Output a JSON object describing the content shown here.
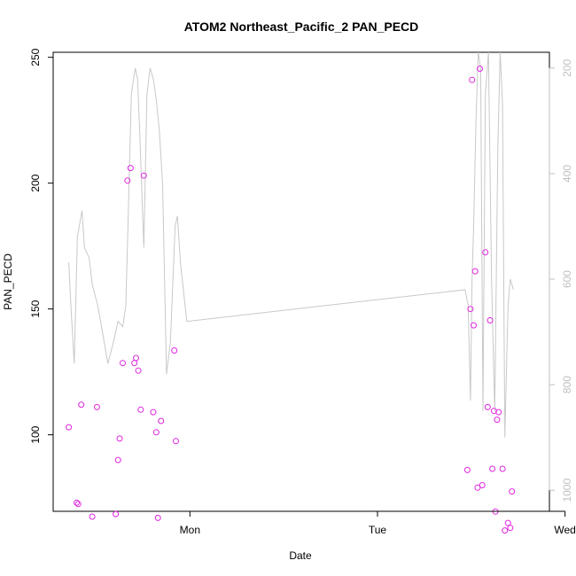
{
  "chart_data": {
    "type": "scatter",
    "title": "ATOM2 Northeast_Pacific_2 PAN_PECD",
    "xlabel": "Date",
    "ylabel": "PAN_PECD",
    "x_ticks": [
      "Mon",
      "Tue",
      "Wed"
    ],
    "y_ticks": [
      100,
      150,
      200,
      250
    ],
    "y_range": [
      69.6,
      252
    ],
    "secondary_axis": {
      "ticks": [
        200,
        400,
        600,
        800,
        1000
      ],
      "range": [
        170,
        1040
      ],
      "reversed": true,
      "color": "#bfbfbf"
    },
    "x_range_hours": [
      -17.5,
      46.0
    ],
    "x_axis_note": "hours relative to Mon 00:00",
    "series": [
      {
        "kind": "points",
        "color": "#e026e0",
        "x": [
          -15.5,
          -14.5,
          -14.3,
          -13.9,
          -12.5,
          -11.9,
          -9.5,
          -9.2,
          -9.0,
          -8.6,
          -8.0,
          -7.6,
          -7.1,
          -6.9,
          -6.6,
          -6.3,
          -5.9,
          -4.7,
          -4.3,
          -4.1,
          -3.7,
          -2.0,
          -1.8,
          35.5,
          35.9,
          36.1,
          36.3,
          36.5,
          36.8,
          37.1,
          37.4,
          37.8,
          38.1,
          38.4,
          38.7,
          38.9,
          39.1,
          39.3,
          39.5,
          40.0,
          40.3,
          40.7,
          41.0,
          41.2
        ],
        "y": [
          103,
          73,
          72.5,
          112,
          67.5,
          111,
          68.5,
          90,
          98.5,
          128.5,
          201,
          206,
          128.5,
          130.5,
          125.5,
          110,
          203,
          109,
          101,
          67,
          105.5,
          133.5,
          97.5,
          86,
          150,
          241,
          143.5,
          165,
          79,
          245.5,
          80,
          172.5,
          111,
          145.5,
          86.5,
          109.5,
          69.5,
          106,
          109,
          86.5,
          62,
          65,
          63,
          77.5
        ]
      },
      {
        "kind": "line",
        "color": "#c8c8c8",
        "x": [
          -15.5,
          -15.2,
          -14.8,
          -14.4,
          -13.8,
          -13.5,
          -12.9,
          -12.5,
          -11.8,
          -11.2,
          -10.5,
          -9.8,
          -9.2,
          -8.6,
          -8.2,
          -7.9,
          -7.5,
          -7.0,
          -6.7,
          -6.4,
          -5.9,
          -5.5,
          -5.1,
          -4.7,
          -4.3,
          -3.9,
          -3.5,
          -3.0,
          -2.5,
          -1.9,
          -1.6,
          -1.2,
          -0.4,
          35.2,
          35.6,
          35.9,
          36.1,
          36.3,
          36.6,
          36.9,
          37.2,
          37.5,
          37.8,
          38.2,
          38.6,
          39.0,
          39.4,
          39.7,
          40.0,
          40.3,
          40.7,
          41.0,
          41.4
        ],
        "p": [
          568,
          660,
          760,
          520,
          470,
          540,
          560,
          610,
          650,
          700,
          760,
          720,
          680,
          690,
          650,
          480,
          250,
          200,
          220,
          330,
          540,
          250,
          200,
          220,
          260,
          320,
          420,
          780,
          720,
          500,
          480,
          570,
          680,
          620,
          650,
          830,
          600,
          500,
          300,
          170,
          200,
          850,
          250,
          170,
          600,
          850,
          350,
          170,
          270,
          900,
          650,
          600,
          620
        ]
      }
    ]
  }
}
